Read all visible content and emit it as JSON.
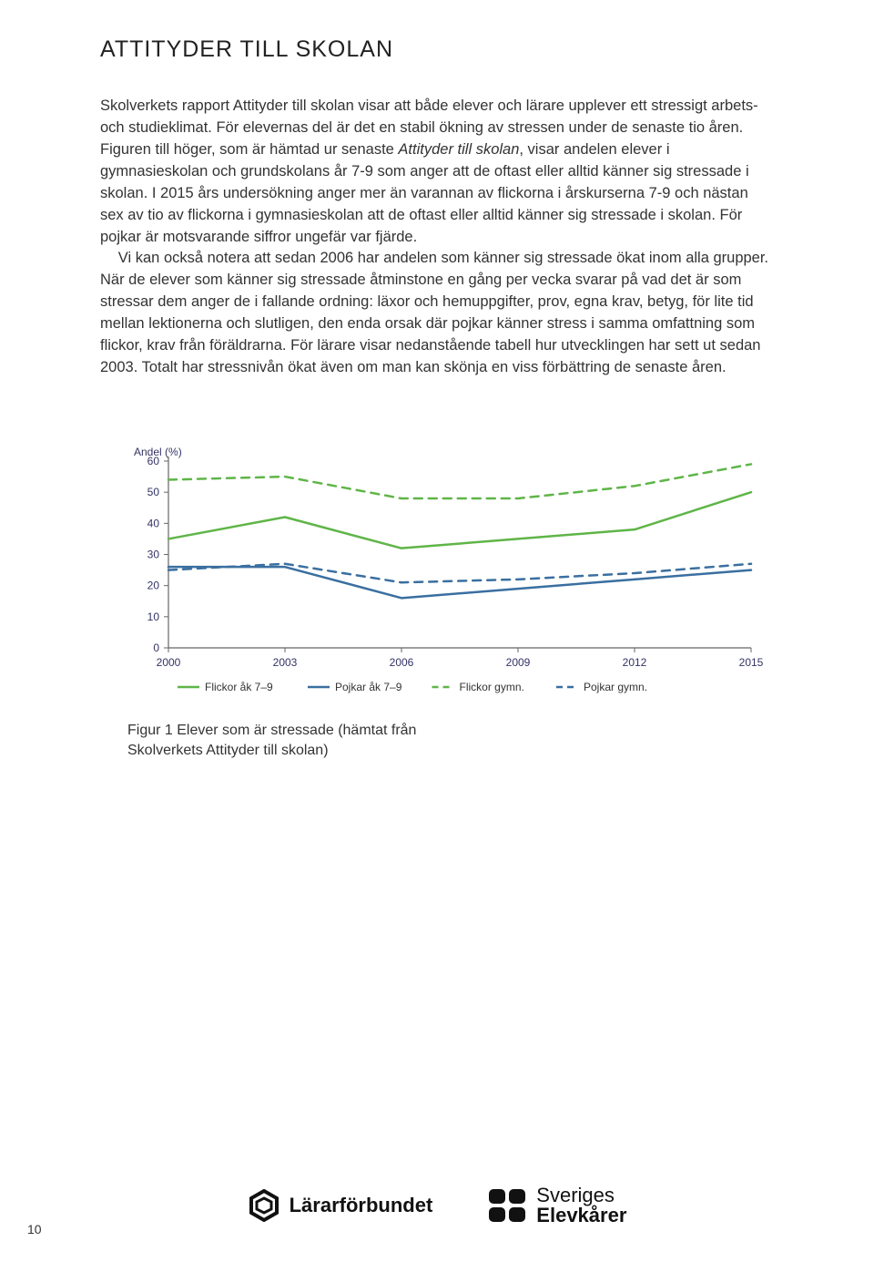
{
  "title": "ATTITYDER TILL SKOLAN",
  "para1_before_italic": "Skolverkets rapport Attityder till skolan visar att både elever och lärare upplever ett stressigt arbets- och studieklimat. För elevernas del är det en stabil ökning av stressen under de senaste tio åren. Figuren till höger, som är hämtad ur senaste ",
  "para1_italic": "Attityder till skolan",
  "para1_after_italic": ", visar andelen elever i gymnasieskolan och grundskolans år 7-9 som anger att de oftast eller alltid känner sig stressade i skolan. I 2015 års undersökning anger mer än varannan av flickorna i årskurserna 7-9 och nästan sex av tio av flickorna i gymnasieskolan att de oftast eller alltid känner sig stressade i skolan. För pojkar är motsvarande siffror ungefär var fjärde.",
  "para2": "Vi kan också notera att sedan 2006 har andelen som känner sig stressade ökat inom alla grupper. När de elever som känner sig stressade åtminstone en gång per vecka svarar på vad det är som stressar dem anger de i fallande ordning: läxor och hemuppgifter, prov, egna krav, betyg, för lite tid mellan lektionerna och slutligen, den enda orsak där pojkar känner stress i samma omfattning som flickor, krav från föräldrarna. För lärare visar nedanstående tabell hur utvecklingen har sett ut sedan 2003. Totalt har stressnivån ökat även om man kan skönja en viss förbättring de senaste åren.",
  "chart": {
    "type": "line",
    "ylabel": "Andel (%)",
    "ylim": [
      0,
      60
    ],
    "ytick_step": 10,
    "xlabels": [
      "2000",
      "2003",
      "2006",
      "2009",
      "2012",
      "2015"
    ],
    "background_color": "#ffffff",
    "axis_color": "#666666",
    "label_fontsize": 12,
    "label_color": "#333366",
    "series": [
      {
        "name": "Flickor åk 7–9",
        "color": "#5fb548",
        "dash": "solid",
        "width": 2.5,
        "values": [
          35,
          42,
          32,
          35,
          38,
          50
        ]
      },
      {
        "name": "Pojkar åk 7–9",
        "color": "#3a6fa0",
        "dash": "solid",
        "width": 2.5,
        "values": [
          26,
          26,
          16,
          19,
          22,
          25
        ]
      },
      {
        "name": "Flickor gymn.",
        "color": "#5fb548",
        "dash": "dashed",
        "width": 2.5,
        "values": [
          54,
          55,
          48,
          48,
          52,
          59
        ]
      },
      {
        "name": "Pojkar gymn.",
        "color": "#3a6fa0",
        "dash": "dashed",
        "width": 2.5,
        "values": [
          25,
          27,
          21,
          22,
          24,
          27
        ]
      }
    ],
    "legend_items": [
      {
        "label": "Flickor åk 7–9",
        "color": "#5fb548",
        "dash": "solid"
      },
      {
        "label": "Pojkar åk 7–9",
        "color": "#3a6fa0",
        "dash": "solid"
      },
      {
        "label": "Flickor gymn.",
        "color": "#5fb548",
        "dash": "dashed"
      },
      {
        "label": "Pojkar gymn.",
        "color": "#3a6fa0",
        "dash": "dashed"
      }
    ]
  },
  "caption_line1": "Figur 1 Elever som är stressade (hämtat från",
  "caption_line2": "Skolverkets Attityder till skolan)",
  "logo_lf": "Lärarförbundet",
  "logo_se_line1": "Sveriges",
  "logo_se_line2": "Elevkårer",
  "page_number": "10"
}
